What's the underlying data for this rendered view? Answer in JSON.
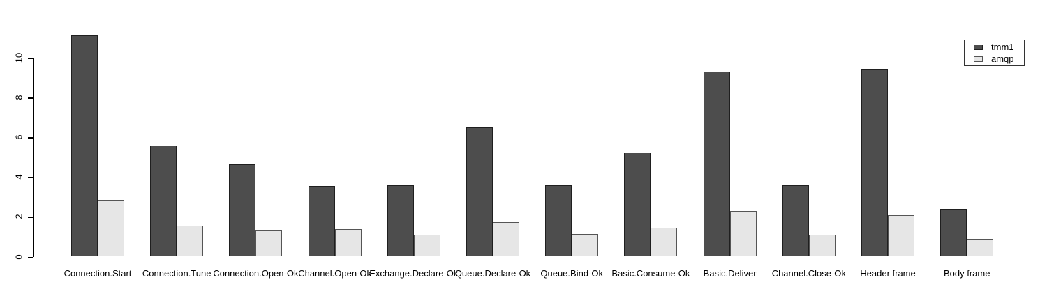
{
  "chart_data": {
    "type": "bar",
    "title": "",
    "xlabel": "",
    "ylabel": "",
    "categories": [
      "Connection.Start",
      "Connection.Tune",
      "Connection.Open-Ok",
      "Channel.Open-Ok",
      "Exchange.Declare-Ok",
      "Queue.Declare-Ok",
      "Queue.Bind-Ok",
      "Basic.Consume-Ok",
      "Basic.Deliver",
      "Channel.Close-Ok",
      "Header frame",
      "Body frame"
    ],
    "series": [
      {
        "name": "tmm1",
        "color": "#4d4d4d",
        "border_color": "#1f1f1f",
        "values": [
          11.15,
          5.6,
          4.65,
          3.55,
          3.6,
          6.5,
          3.6,
          5.25,
          9.3,
          3.6,
          9.45,
          2.4
        ]
      },
      {
        "name": "amqp",
        "color": "#e6e6e6",
        "border_color": "#555555",
        "values": [
          2.85,
          1.55,
          1.35,
          1.4,
          1.1,
          1.75,
          1.15,
          1.45,
          2.3,
          1.1,
          2.1,
          0.9
        ]
      }
    ],
    "ylim": [
      0,
      11.7
    ],
    "ytick_labels": [
      "0",
      "2",
      "4",
      "6",
      "8",
      "10"
    ],
    "grid": false,
    "legend_position": "top-right"
  }
}
